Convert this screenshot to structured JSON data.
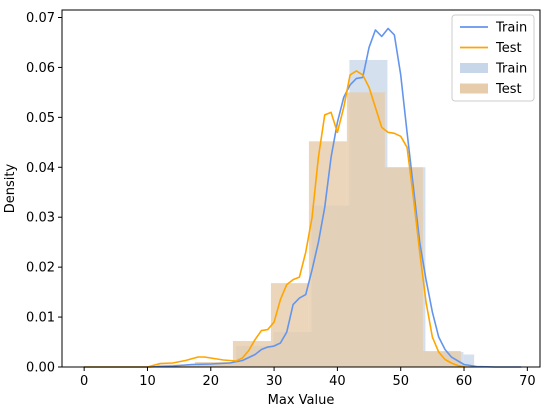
{
  "chart_data": {
    "type": "histogram-kde",
    "xlabel": "Max Value",
    "ylabel": "Density",
    "xlim": [
      -3.5,
      72
    ],
    "ylim": [
      0,
      0.0715
    ],
    "x_ticks": [
      0,
      10,
      20,
      30,
      40,
      50,
      60,
      70
    ],
    "y_ticks": [
      0.0,
      0.01,
      0.02,
      0.03,
      0.04,
      0.05,
      0.06,
      0.07
    ],
    "y_tick_labels": [
      "0.00",
      "0.01",
      "0.02",
      "0.03",
      "0.04",
      "0.05",
      "0.06",
      "0.07"
    ],
    "legend_position": "top-right",
    "colors": {
      "train_line": "#6495ed",
      "test_line": "#ffa500",
      "train_bar": "#c7d6e8",
      "test_bar": "#e6ccaa"
    },
    "histograms": [
      {
        "name": "Train",
        "bins": [
          {
            "x0": 12.0,
            "x1": 18.0,
            "value": 0.0002
          },
          {
            "x0": 18.0,
            "x1": 24.0,
            "value": 0.0008
          },
          {
            "x0": 24.0,
            "x1": 29.9,
            "value": 0.0042
          },
          {
            "x0": 29.9,
            "x1": 35.9,
            "value": 0.007
          },
          {
            "x0": 35.9,
            "x1": 41.9,
            "value": 0.0323
          },
          {
            "x0": 41.9,
            "x1": 47.9,
            "value": 0.0615
          },
          {
            "x0": 47.9,
            "x1": 53.9,
            "value": 0.04
          },
          {
            "x0": 53.9,
            "x1": 59.9,
            "value": 0.003
          },
          {
            "x0": 59.9,
            "x1": 61.6,
            "value": 0.0025
          }
        ]
      },
      {
        "name": "Test",
        "bins": [
          {
            "x0": 11.5,
            "x1": 17.5,
            "value": 0.0005
          },
          {
            "x0": 17.5,
            "x1": 23.5,
            "value": 0.001
          },
          {
            "x0": 23.5,
            "x1": 29.5,
            "value": 0.0052
          },
          {
            "x0": 29.5,
            "x1": 35.5,
            "value": 0.0168
          },
          {
            "x0": 35.5,
            "x1": 41.5,
            "value": 0.0452
          },
          {
            "x0": 41.5,
            "x1": 47.5,
            "value": 0.055
          },
          {
            "x0": 47.5,
            "x1": 53.5,
            "value": 0.04
          },
          {
            "x0": 53.5,
            "x1": 59.5,
            "value": 0.0032
          },
          {
            "x0": 59.5,
            "x1": 60.5,
            "value": 0.0003
          }
        ]
      }
    ],
    "series": [
      {
        "name": "Train",
        "x": [
          0,
          10,
          14,
          17,
          20,
          23,
          25,
          27,
          28,
          29,
          30,
          31,
          32,
          33,
          34,
          35,
          36,
          37,
          38,
          39,
          40,
          41,
          42,
          43,
          44,
          45,
          46,
          47,
          48,
          49,
          50,
          51,
          52,
          53,
          54,
          55,
          56,
          57,
          58,
          60,
          62,
          65,
          69
        ],
        "y": [
          0,
          0,
          0.0002,
          0.0005,
          0.0006,
          0.0008,
          0.0013,
          0.0025,
          0.0035,
          0.004,
          0.0042,
          0.0048,
          0.007,
          0.0125,
          0.0138,
          0.0145,
          0.0195,
          0.025,
          0.032,
          0.042,
          0.049,
          0.054,
          0.0565,
          0.0578,
          0.058,
          0.064,
          0.0675,
          0.0662,
          0.0678,
          0.0665,
          0.0585,
          0.047,
          0.036,
          0.025,
          0.0175,
          0.011,
          0.006,
          0.0035,
          0.002,
          0.0005,
          0.0001,
          0,
          0
        ]
      },
      {
        "name": "Test",
        "x": [
          0,
          10,
          12,
          14,
          16,
          18,
          19,
          20,
          22,
          24,
          25,
          26,
          27,
          28,
          29,
          30,
          31,
          32,
          33,
          34,
          35,
          36,
          37,
          38,
          39,
          40,
          41,
          42,
          43,
          44,
          45,
          46,
          47,
          48,
          49,
          50,
          51,
          52,
          53,
          54,
          55,
          56,
          57,
          58,
          59,
          60
        ],
        "y": [
          0,
          0,
          0.0007,
          0.0008,
          0.0013,
          0.002,
          0.002,
          0.0018,
          0.0014,
          0.0012,
          0.0018,
          0.0033,
          0.0055,
          0.0073,
          0.0075,
          0.009,
          0.0135,
          0.0165,
          0.0175,
          0.018,
          0.023,
          0.03,
          0.042,
          0.0505,
          0.051,
          0.047,
          0.052,
          0.0585,
          0.0593,
          0.0585,
          0.056,
          0.052,
          0.048,
          0.047,
          0.0468,
          0.0462,
          0.044,
          0.034,
          0.023,
          0.013,
          0.006,
          0.003,
          0.0015,
          0.0008,
          0.0003,
          0.0001
        ]
      }
    ],
    "legend": [
      {
        "label": "Train",
        "kind": "line",
        "color_key": "train_line"
      },
      {
        "label": "Test",
        "kind": "line",
        "color_key": "test_line"
      },
      {
        "label": "Train",
        "kind": "patch",
        "color_key": "train_bar"
      },
      {
        "label": "Test",
        "kind": "patch",
        "color_key": "test_bar"
      }
    ]
  }
}
